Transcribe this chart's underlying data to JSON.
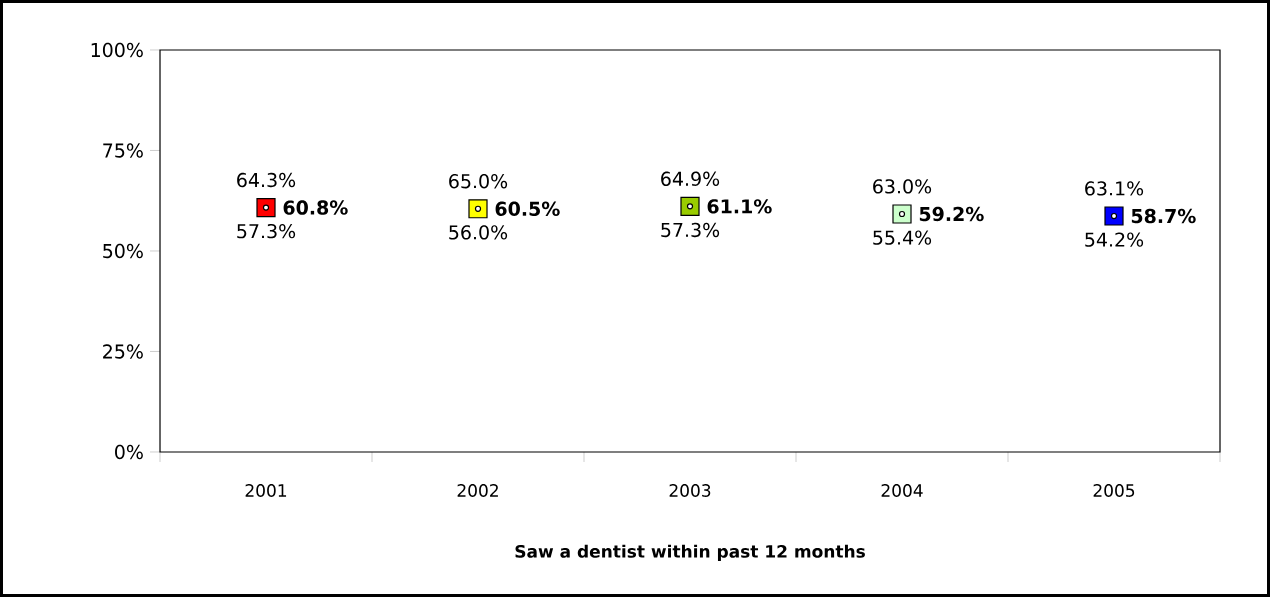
{
  "chart_data": {
    "type": "scatter",
    "xlabel": "Saw a dentist within past 12 months",
    "categories": [
      "2001",
      "2002",
      "2003",
      "2004",
      "2005"
    ],
    "values": [
      60.8,
      60.5,
      61.1,
      59.2,
      58.7
    ],
    "value_labels": [
      "60.8%",
      "60.5%",
      "61.1%",
      "59.2%",
      "58.7%"
    ],
    "colors": [
      "#ff0000",
      "#ffff00",
      "#99cc00",
      "#ccffcc",
      "#0000ff"
    ],
    "marker": "square",
    "ylim": [
      0,
      100
    ],
    "yticks": [
      {
        "value": 0,
        "label": "0%"
      },
      {
        "value": 25,
        "label": "25%"
      },
      {
        "value": 50,
        "label": "50%"
      },
      {
        "value": 75,
        "label": "75%"
      },
      {
        "value": 100,
        "label": "100%"
      }
    ],
    "annotations": [
      "64.3%",
      "57.3%",
      "65.0%",
      "56.0%",
      "64.9%",
      "57.3%",
      "63.0%",
      "55.4%",
      "63.1%",
      "54.2%"
    ],
    "grid": false
  }
}
